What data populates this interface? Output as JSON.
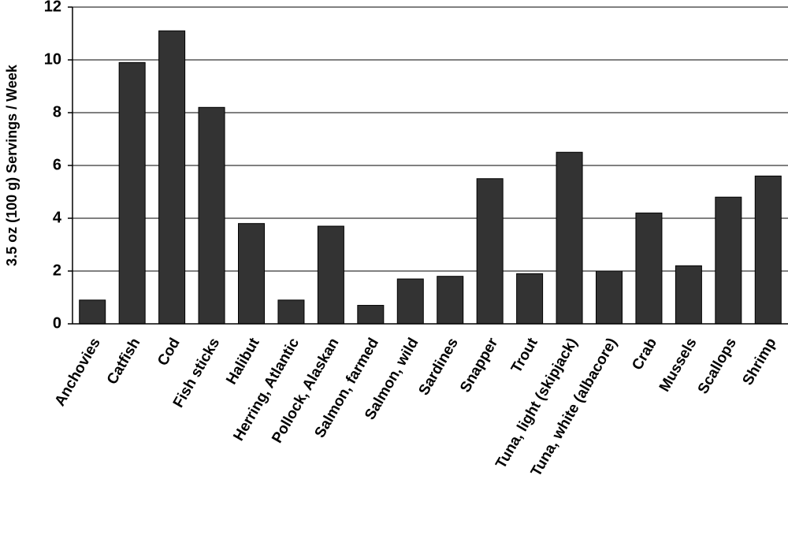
{
  "chart_data": {
    "type": "bar",
    "y_label": "3.5 oz (100 g) Servings / Week",
    "categories": [
      "Anchovies",
      "Catfish",
      "Cod",
      "Fish sticks",
      "Halibut",
      "Herring, Atlantic",
      "Pollock, Alaskan",
      "Salmon, farmed",
      "Salmon, wild",
      "Sardines",
      "Snapper",
      "Trout",
      "Tuna, light (skipjack)",
      "Tuna, white (albacore)",
      "Crab",
      "Mussels",
      "Scallops",
      "Shrimp"
    ],
    "values": [
      0.9,
      9.9,
      11.1,
      8.2,
      3.8,
      0.9,
      3.7,
      0.7,
      1.7,
      1.8,
      5.5,
      1.9,
      6.5,
      2.0,
      4.2,
      2.2,
      4.8,
      5.6
    ],
    "color": "#333333",
    "ylim": [
      0,
      12
    ],
    "yticks": [
      0,
      2,
      4,
      6,
      8,
      10,
      12
    ],
    "grid": true
  }
}
